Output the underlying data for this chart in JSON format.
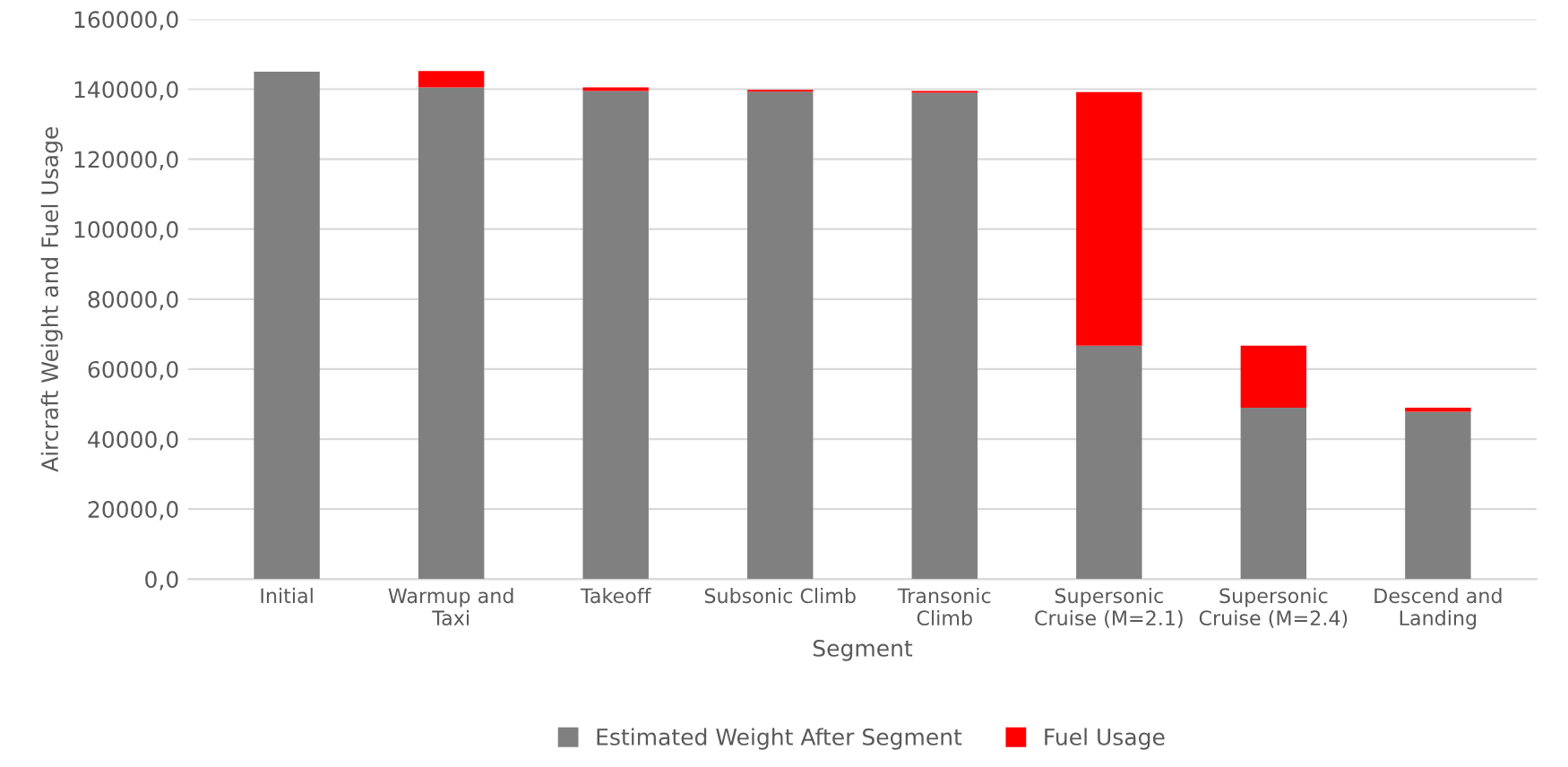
{
  "chart_data": {
    "type": "bar",
    "stacked": true,
    "xlabel": "Segment",
    "ylabel": "Aircraft Weight and Fuel Usage",
    "categories": [
      "Initial",
      "Warmup and\nTaxi",
      "Takeoff",
      "Subsonic Climb",
      "Transonic\nClimb",
      "Supersonic\nCruise (M=2.1)",
      "Supersonic\nCruise (M=2.4)",
      "Descend and\nLanding"
    ],
    "series": [
      {
        "name": "Estimated Weight After Segment",
        "color": "#808080",
        "values": [
          145000,
          140500,
          139500,
          139300,
          139000,
          66700,
          49000,
          47800
        ]
      },
      {
        "name": "Fuel Usage",
        "color": "#ff0000",
        "values": [
          0,
          4700,
          1000,
          500,
          500,
          72500,
          17700,
          1200
        ]
      }
    ],
    "ylim": [
      0,
      160000
    ],
    "yticks": [
      {
        "value": 0,
        "label": "0,0"
      },
      {
        "value": 20000,
        "label": "20000,0"
      },
      {
        "value": 40000,
        "label": "40000,0"
      },
      {
        "value": 60000,
        "label": "60000,0"
      },
      {
        "value": 80000,
        "label": "80000,0"
      },
      {
        "value": 100000,
        "label": "100000,0"
      },
      {
        "value": 120000,
        "label": "120000,0"
      },
      {
        "value": 140000,
        "label": "140000,0"
      },
      {
        "value": 160000,
        "label": "160000,0"
      }
    ],
    "grid": "y",
    "legend": "bottom"
  }
}
